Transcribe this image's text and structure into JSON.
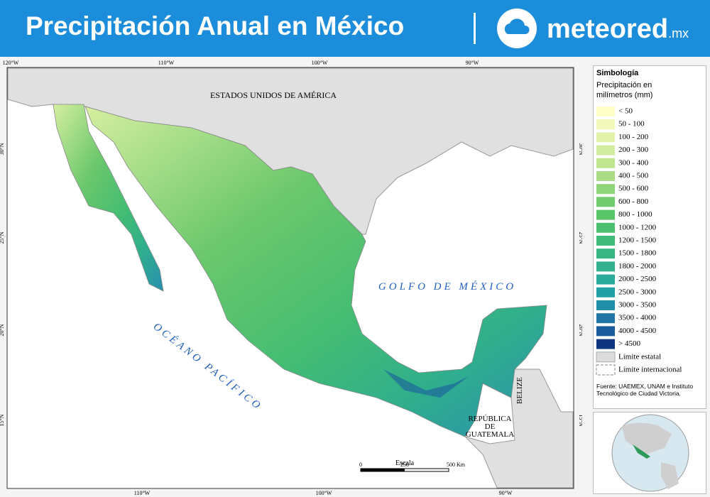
{
  "header": {
    "title": "Precipitación Anual en México",
    "brand": "meteored",
    "brand_suffix": ".mx"
  },
  "map": {
    "labels": {
      "usa": "ESTADOS UNIDOS DE AMÉRICA",
      "gulf": "GOLFO DE MÉXICO",
      "pacific": "OCÉANO PACÍFICO",
      "guatemala": [
        "REPÚBLICA",
        "DE",
        "GUATEMALA"
      ],
      "belize": "BELIZE"
    },
    "graticule": {
      "top": [
        "120°W",
        "110°W",
        "100°W",
        "90°W"
      ],
      "bottom": [
        "110°W",
        "100°W",
        "90°W"
      ],
      "left": [
        "30°N",
        "25°N",
        "20°N",
        "15°N"
      ],
      "right": [
        "30°N",
        "25°N",
        "20°N",
        "15°N"
      ]
    },
    "scale": {
      "title": "Escala",
      "ticks": [
        "0",
        "250",
        "500 Km"
      ]
    }
  },
  "legend": {
    "title": "Simbología",
    "subtitle": "Precipitación en milímetros (mm)",
    "items": [
      {
        "label": "< 50",
        "color": "#ffffc8"
      },
      {
        "label": "50 - 100",
        "color": "#f2f8b8"
      },
      {
        "label": "100 - 200",
        "color": "#e3f2aa"
      },
      {
        "label": "200 - 300",
        "color": "#d3eda0"
      },
      {
        "label": "300 - 400",
        "color": "#bfe58f"
      },
      {
        "label": "400 - 500",
        "color": "#a9dc84"
      },
      {
        "label": "500 - 600",
        "color": "#8fd57a"
      },
      {
        "label": "600 - 800",
        "color": "#72cc6f"
      },
      {
        "label": "800 - 1000",
        "color": "#5ac66a"
      },
      {
        "label": "1000 - 1200",
        "color": "#4bc06f"
      },
      {
        "label": "1200 - 1500",
        "color": "#40bb79"
      },
      {
        "label": "1500 - 1800",
        "color": "#38b683"
      },
      {
        "label": "1800 - 2000",
        "color": "#31b18e"
      },
      {
        "label": "2000 - 2500",
        "color": "#29aa9a"
      },
      {
        "label": "2500 - 3000",
        "color": "#22a0a6"
      },
      {
        "label": "3000 - 3500",
        "color": "#1f8faa"
      },
      {
        "label": "3500 - 4000",
        "color": "#1f76a4"
      },
      {
        "label": "4000 - 4500",
        "color": "#1b5c9c"
      },
      {
        "label": "> 4500",
        "color": "#0f3581"
      }
    ],
    "boundaries": [
      "Límite estatal",
      "Límite internacional"
    ],
    "source": "Fuente: UAEMEX, UNAM e Instituto Tecnológico de Ciudad Victoria."
  }
}
